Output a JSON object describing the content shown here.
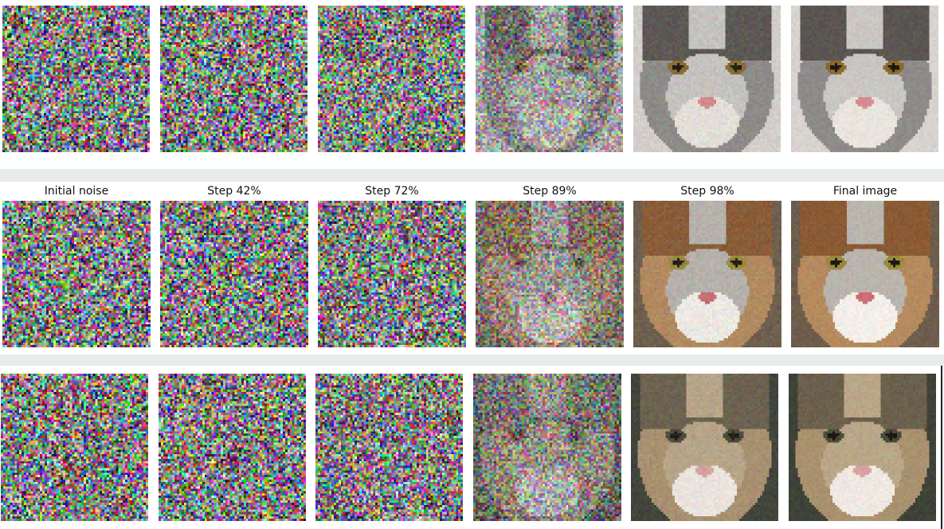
{
  "captions": [
    "Initial noise",
    "Step 42%",
    "Step 72%",
    "Step 89%",
    "Step 98%",
    "Final image"
  ],
  "rows": [
    {
      "name": "row-1",
      "subject": {
        "fur": "#8e8b89",
        "patch": "#5a5552",
        "face": "#c9c6c3",
        "muzzle": "#e9e4dd",
        "eye": "#8a6a2e",
        "nose": "#d88a90",
        "bg": "#d7d3cf"
      },
      "noise_levels": [
        1.0,
        1.0,
        0.95,
        0.55,
        0.06,
        0.0
      ]
    },
    {
      "name": "row-2",
      "subject": {
        "fur": "#b58a5e",
        "patch": "#8a5a34",
        "face": "#b9b4ad",
        "muzzle": "#f3efe9",
        "eye": "#9a8a3a",
        "nose": "#c96f72",
        "bg": "#6d5d4c"
      },
      "noise_levels": [
        1.0,
        1.0,
        0.95,
        0.55,
        0.06,
        0.0
      ]
    },
    {
      "name": "row-3",
      "subject": {
        "fur": "#a9916f",
        "patch": "#6b604d",
        "face": "#b9a688",
        "muzzle": "#efe8e2",
        "eye": "#4a4a3a",
        "nose": "#d9a2a2",
        "bg": "#3e4238"
      },
      "noise_levels": [
        1.0,
        1.0,
        0.95,
        0.6,
        0.05,
        0.0
      ]
    }
  ]
}
